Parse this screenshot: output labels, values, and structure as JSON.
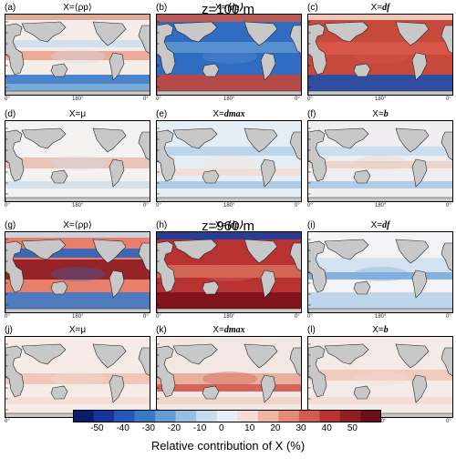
{
  "figure": {
    "sections": [
      {
        "title": "z=100 m"
      },
      {
        "title": "z=960 m"
      }
    ],
    "panels": [
      {
        "letter": "(a)",
        "x_label_prefix": "X=",
        "x_label_var": "⟨ρp⟩",
        "x_label_style": "plain"
      },
      {
        "letter": "(b)",
        "x_label_prefix": "X=",
        "x_label_var": "⟨dp⟩",
        "x_label_style": "italic"
      },
      {
        "letter": "(c)",
        "x_label_prefix": "X=",
        "x_label_var": "df",
        "x_label_style": "italic"
      },
      {
        "letter": "(d)",
        "x_label_prefix": "X=",
        "x_label_var": "μ",
        "x_label_style": "plain"
      },
      {
        "letter": "(e)",
        "x_label_prefix": "X=",
        "x_label_var": "dmax",
        "x_label_style": "italic"
      },
      {
        "letter": "(f)",
        "x_label_prefix": "X=",
        "x_label_var": "b",
        "x_label_style": "italic"
      },
      {
        "letter": "(g)",
        "x_label_prefix": "X=",
        "x_label_var": "⟨ρp⟩",
        "x_label_style": "plain"
      },
      {
        "letter": "(h)",
        "x_label_prefix": "X=",
        "x_label_var": "⟨dp⟩",
        "x_label_style": "italic"
      },
      {
        "letter": "(i)",
        "x_label_prefix": "X=",
        "x_label_var": "df",
        "x_label_style": "italic"
      },
      {
        "letter": "(j)",
        "x_label_prefix": "X=",
        "x_label_var": "μ",
        "x_label_style": "plain"
      },
      {
        "letter": "(k)",
        "x_label_prefix": "X=",
        "x_label_var": "dmax",
        "x_label_style": "italic"
      },
      {
        "letter": "(l)",
        "x_label_prefix": "X=",
        "x_label_var": "b",
        "x_label_style": "italic"
      }
    ],
    "lon_ticks": [
      "0°",
      "180°",
      "0°"
    ],
    "colorbar": {
      "ticks": [
        "-50",
        "-40",
        "-30",
        "-20",
        "-10",
        "0",
        "10",
        "20",
        "30",
        "40",
        "50"
      ],
      "colors": [
        "#0b1c6b",
        "#16359a",
        "#2457b8",
        "#3a79c9",
        "#639dd7",
        "#95c0e3",
        "#c5dcee",
        "#e6eef5",
        "#f4dcd2",
        "#efb5a2",
        "#e58a73",
        "#d45a4b",
        "#b83232",
        "#921d24",
        "#6b0f18"
      ],
      "title": "Relative contribution of X (%)"
    }
  }
}
